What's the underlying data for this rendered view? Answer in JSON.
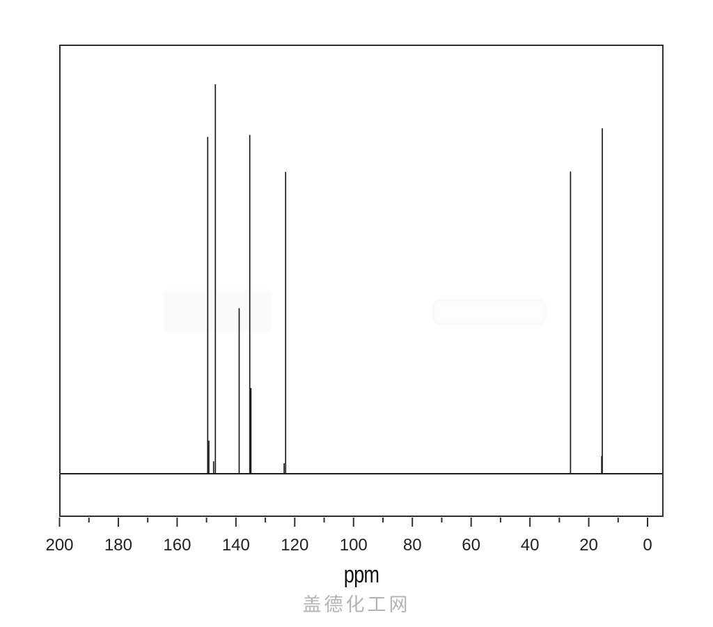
{
  "chart_data": {
    "type": "line",
    "subtype": "13C NMR spectrum",
    "title": "",
    "xlabel": "ppm",
    "ylabel": "",
    "xlim": [
      200,
      0
    ],
    "x_ticks": [
      200,
      180,
      160,
      140,
      120,
      100,
      80,
      60,
      40,
      20,
      0
    ],
    "x_major_step": 20,
    "x_minor_step": 10,
    "grid": false,
    "legend": false,
    "line_color": "#1c1c1c",
    "axis_color": "#2e2e2e",
    "tick_label_color": "#222222",
    "peaks": [
      {
        "ppm": 149.6,
        "rel_intensity": 0.865
      },
      {
        "ppm": 149.2,
        "rel_intensity": 0.085
      },
      {
        "ppm": 147.6,
        "rel_intensity": 0.032
      },
      {
        "ppm": 147.0,
        "rel_intensity": 1.0
      },
      {
        "ppm": 138.9,
        "rel_intensity": 0.425
      },
      {
        "ppm": 135.3,
        "rel_intensity": 0.87
      },
      {
        "ppm": 134.9,
        "rel_intensity": 0.22
      },
      {
        "ppm": 123.6,
        "rel_intensity": 0.027
      },
      {
        "ppm": 123.1,
        "rel_intensity": 0.775
      },
      {
        "ppm": 26.2,
        "rel_intensity": 0.776
      },
      {
        "ppm": 15.6,
        "rel_intensity": 0.045
      },
      {
        "ppm": 15.4,
        "rel_intensity": 0.887
      }
    ]
  },
  "watermark": {
    "text": "盖德化工网",
    "color": "#b4b4b4"
  }
}
